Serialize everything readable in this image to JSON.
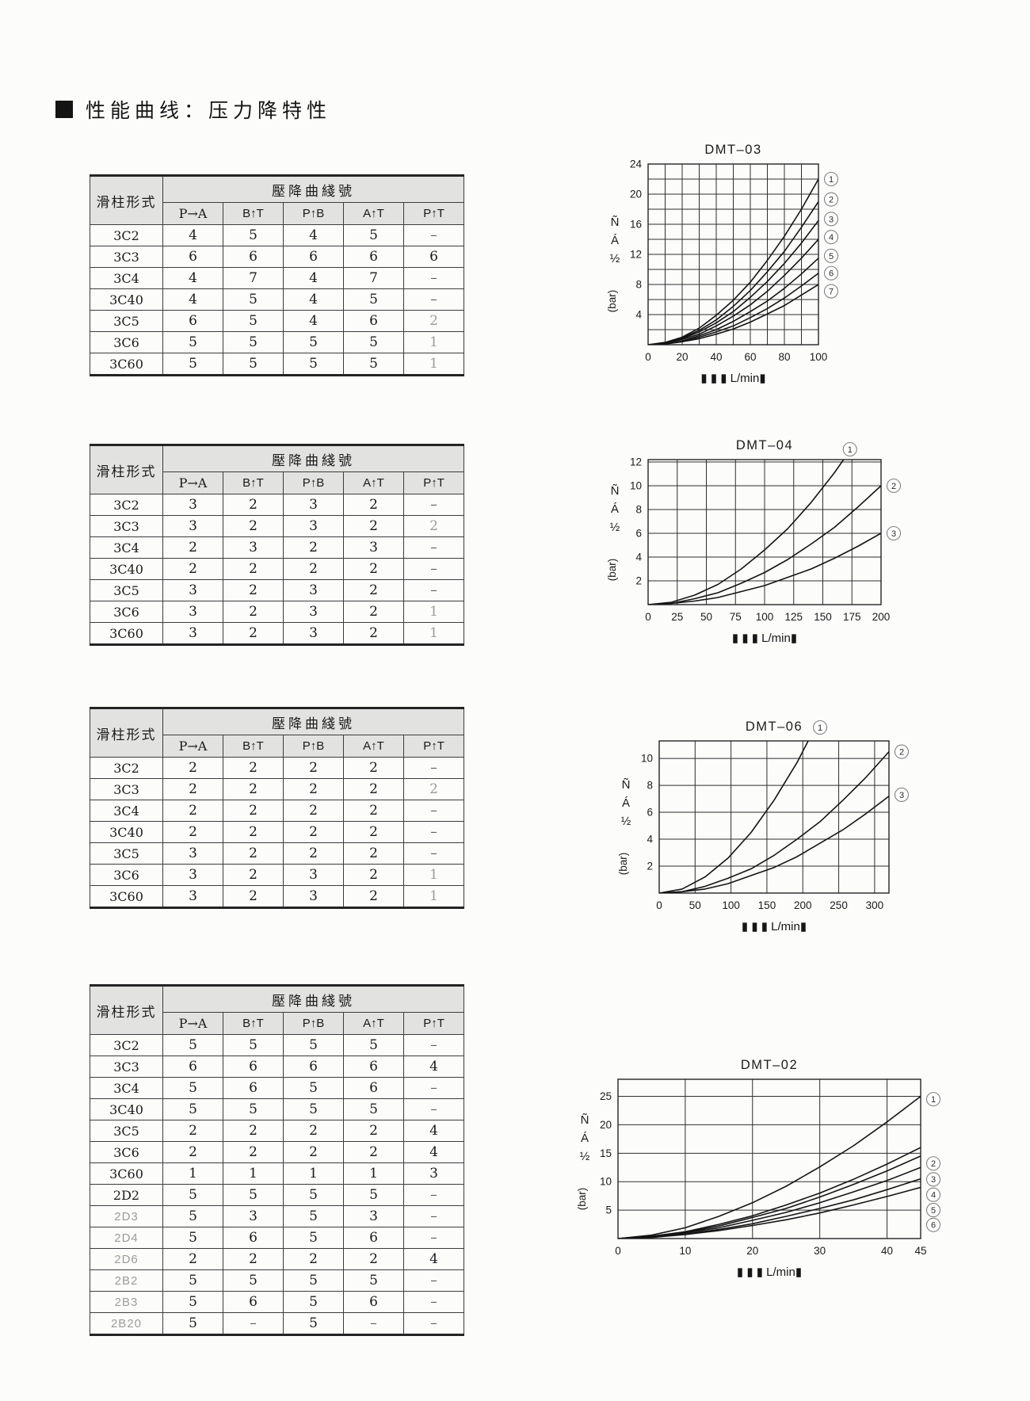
{
  "page": {
    "bullet": "■",
    "title": "性能曲线：压力降特性"
  },
  "table_header": {
    "spool_col": "滑柱形式",
    "group": "壓降曲綫號",
    "flow_paths": [
      "P→A",
      "B↑T",
      "P↑B",
      "A↑T",
      "P↑T"
    ]
  },
  "tables": [
    {
      "rows": [
        {
          "label": "3C2",
          "cells": [
            "4",
            "5",
            "4",
            "5",
            "–"
          ]
        },
        {
          "label": "3C3",
          "cells": [
            "6",
            "6",
            "6",
            "6",
            "6"
          ]
        },
        {
          "label": "3C4",
          "cells": [
            "4",
            "7",
            "4",
            "7",
            "–"
          ]
        },
        {
          "label": "3C40",
          "cells": [
            "4",
            "5",
            "4",
            "5",
            "–"
          ]
        },
        {
          "label": "3C5",
          "cells": [
            "6",
            "5",
            "4",
            "6",
            {
              "v": "2",
              "gray": true
            }
          ]
        },
        {
          "label": "3C6",
          "cells": [
            "5",
            "5",
            "5",
            "5",
            {
              "v": "1",
              "gray": true
            }
          ]
        },
        {
          "label": "3C60",
          "cells": [
            "5",
            "5",
            "5",
            "5",
            {
              "v": "1",
              "gray": true
            }
          ]
        }
      ]
    },
    {
      "rows": [
        {
          "label": "3C2",
          "cells": [
            "3",
            "2",
            "3",
            "2",
            "–"
          ]
        },
        {
          "label": "3C3",
          "cells": [
            "3",
            "2",
            "3",
            "2",
            {
              "v": "2",
              "gray": true
            }
          ]
        },
        {
          "label": "3C4",
          "cells": [
            "2",
            "3",
            "2",
            "3",
            "–"
          ]
        },
        {
          "label": "3C40",
          "cells": [
            "2",
            "2",
            "2",
            "2",
            "–"
          ]
        },
        {
          "label": "3C5",
          "cells": [
            "3",
            "2",
            "3",
            "2",
            "–"
          ]
        },
        {
          "label": "3C6",
          "cells": [
            "3",
            "2",
            "3",
            "2",
            {
              "v": "1",
              "gray": true
            }
          ]
        },
        {
          "label": "3C60",
          "cells": [
            "3",
            "2",
            "3",
            "2",
            {
              "v": "1",
              "gray": true
            }
          ]
        }
      ]
    },
    {
      "rows": [
        {
          "label": "3C2",
          "cells": [
            "2",
            "2",
            "2",
            "2",
            "–"
          ]
        },
        {
          "label": "3C3",
          "cells": [
            "2",
            "2",
            "2",
            "2",
            {
              "v": "2",
              "gray": true
            }
          ]
        },
        {
          "label": "3C4",
          "cells": [
            "2",
            "2",
            "2",
            "2",
            "–"
          ]
        },
        {
          "label": "3C40",
          "cells": [
            "2",
            "2",
            "2",
            "2",
            "–"
          ]
        },
        {
          "label": "3C5",
          "cells": [
            "3",
            "2",
            "2",
            "2",
            "–"
          ]
        },
        {
          "label": "3C6",
          "cells": [
            "3",
            "2",
            "3",
            "2",
            {
              "v": "1",
              "gray": true
            }
          ]
        },
        {
          "label": "3C60",
          "cells": [
            "3",
            "2",
            "3",
            "2",
            {
              "v": "1",
              "gray": true
            }
          ]
        }
      ]
    },
    {
      "rows": [
        {
          "label": "3C2",
          "cells": [
            "5",
            "5",
            "5",
            "5",
            "–"
          ]
        },
        {
          "label": "3C3",
          "cells": [
            "6",
            "6",
            "6",
            "6",
            "4"
          ]
        },
        {
          "label": "3C4",
          "cells": [
            "5",
            "6",
            "5",
            "6",
            "–"
          ]
        },
        {
          "label": "3C40",
          "cells": [
            "5",
            "5",
            "5",
            "5",
            "–"
          ]
        },
        {
          "label": "3C5",
          "cells": [
            "2",
            "2",
            "2",
            "2",
            "4"
          ]
        },
        {
          "label": "3C6",
          "cells": [
            "2",
            "2",
            "2",
            "2",
            "4"
          ]
        },
        {
          "label": "3C60",
          "cells": [
            "1",
            "1",
            "1",
            "1",
            "3"
          ]
        },
        {
          "label": "2D2",
          "cells": [
            "5",
            "5",
            "5",
            "5",
            "–"
          ]
        },
        {
          "label": "2D3",
          "gray_label": true,
          "cells": [
            "5",
            "3",
            "5",
            "3",
            "–"
          ]
        },
        {
          "label": "2D4",
          "gray_label": true,
          "cells": [
            "5",
            "6",
            "5",
            "6",
            "–"
          ]
        },
        {
          "label": "2D6",
          "gray_label": true,
          "cells": [
            "2",
            "2",
            "2",
            "2",
            "4"
          ]
        },
        {
          "label": "2B2",
          "gray_label": true,
          "cells": [
            "5",
            "5",
            "5",
            "5",
            "–"
          ]
        },
        {
          "label": "2B3",
          "gray_label": true,
          "cells": [
            "5",
            "6",
            "5",
            "6",
            "–"
          ]
        },
        {
          "label": "2B20",
          "gray_label": true,
          "cells": [
            "5",
            "–",
            "5",
            "–",
            "–"
          ]
        }
      ]
    }
  ],
  "chart_data": [
    {
      "type": "line",
      "title": "DMT–03",
      "xlabel": "▮ ▮ ▮ L/min▮",
      "ylabel_chars": [
        "Ñ",
        "Á",
        "½"
      ],
      "ylabel_unit": "(bar)",
      "xlim": [
        0,
        100
      ],
      "ylim": [
        0,
        24
      ],
      "xticks": [
        0,
        20,
        40,
        60,
        80,
        100
      ],
      "yticks": [
        4,
        8,
        12,
        16,
        20,
        24
      ],
      "grid_step_x": 10,
      "grid_step_y": 2,
      "x": [
        0,
        10,
        20,
        30,
        40,
        50,
        60,
        70,
        80,
        90,
        100
      ],
      "series": [
        {
          "name": "1",
          "values": [
            0,
            0.3,
            1.0,
            2.2,
            3.9,
            5.9,
            8.3,
            11.2,
            14.4,
            18.0,
            22.0
          ],
          "label_y": 22.0
        },
        {
          "name": "2",
          "values": [
            0,
            0.2,
            0.9,
            1.9,
            3.3,
            5.1,
            7.2,
            9.7,
            12.4,
            15.6,
            19.0
          ],
          "label_y": 19.3
        },
        {
          "name": "3",
          "values": [
            0,
            0.2,
            0.8,
            1.7,
            2.9,
            4.4,
            6.3,
            8.4,
            10.8,
            13.5,
            16.5
          ],
          "label_y": 16.7
        },
        {
          "name": "4",
          "values": [
            0,
            0.2,
            0.7,
            1.4,
            2.5,
            3.8,
            5.3,
            7.1,
            9.2,
            11.5,
            14.0
          ],
          "label_y": 14.3
        },
        {
          "name": "5",
          "values": [
            0,
            0.1,
            0.5,
            1.2,
            2.0,
            3.1,
            4.4,
            5.8,
            7.5,
            9.4,
            11.5
          ],
          "label_y": 11.8
        },
        {
          "name": "6",
          "values": [
            0,
            0.1,
            0.4,
            1.0,
            1.7,
            2.5,
            3.6,
            4.8,
            6.2,
            7.8,
            9.5
          ],
          "label_y": 9.5
        },
        {
          "name": "7",
          "values": [
            0,
            0.1,
            0.4,
            0.8,
            1.4,
            2.1,
            3.0,
            4.1,
            5.2,
            6.6,
            8.0
          ],
          "label_y": 7.1
        }
      ]
    },
    {
      "type": "line",
      "title": "DMT–04",
      "xlabel": "▮ ▮ ▮ L/min▮",
      "ylabel_chars": [
        "Ñ",
        "Á",
        "½"
      ],
      "ylabel_unit": "(bar)",
      "xlim": [
        0,
        200
      ],
      "ylim": [
        0,
        12.2
      ],
      "xticks": [
        0,
        25,
        50,
        75,
        100,
        125,
        150,
        175,
        200
      ],
      "yticks": [
        2,
        4,
        6,
        8,
        10,
        12
      ],
      "grid_step_x": 25,
      "grid_step_y": 2,
      "x": [
        0,
        20,
        40,
        60,
        80,
        100,
        120,
        140,
        160,
        180,
        200
      ],
      "series": [
        {
          "name": "1",
          "values": [
            0,
            0.2,
            0.8,
            1.7,
            3.0,
            4.6,
            6.4,
            8.6,
            11.1,
            13.9,
            17.0
          ],
          "label": "top"
        },
        {
          "name": "2",
          "values": [
            0,
            0.1,
            0.5,
            1.0,
            1.8,
            2.7,
            3.8,
            5.1,
            6.5,
            8.2,
            10.0
          ],
          "label_y": 10.0
        },
        {
          "name": "3",
          "values": [
            0,
            0.1,
            0.3,
            0.6,
            1.1,
            1.6,
            2.3,
            3.0,
            3.9,
            4.9,
            6.0
          ],
          "label_y": 6.0
        }
      ]
    },
    {
      "type": "line",
      "title": "DMT–06",
      "xlabel": "▮ ▮ ▮ L/min▮",
      "ylabel_chars": [
        "Ñ",
        "Á",
        "½"
      ],
      "ylabel_unit": "(bar)",
      "xlim": [
        0,
        320
      ],
      "ylim": [
        0,
        11.3
      ],
      "xticks": [
        0,
        50,
        100,
        150,
        200,
        250,
        300
      ],
      "yticks": [
        2,
        4,
        6,
        8,
        10
      ],
      "grid_step_x": 50,
      "grid_step_y": 2,
      "x": [
        0,
        32,
        64,
        96,
        128,
        160,
        192,
        224,
        256,
        288,
        320
      ],
      "series": [
        {
          "name": "1",
          "values": [
            0,
            0.3,
            1.2,
            2.6,
            4.5,
            6.9,
            9.7,
            13.0,
            16.8,
            21.0,
            25.6
          ],
          "label": "top"
        },
        {
          "name": "2",
          "values": [
            0,
            0.1,
            0.5,
            1.1,
            1.8,
            2.8,
            4.0,
            5.3,
            6.9,
            8.6,
            10.5
          ],
          "label_y": 10.5
        },
        {
          "name": "3",
          "values": [
            0,
            0.1,
            0.3,
            0.7,
            1.3,
            1.9,
            2.7,
            3.7,
            4.7,
            5.9,
            7.2
          ],
          "label_y": 7.3
        }
      ]
    },
    {
      "type": "line",
      "title": "DMT–02",
      "xlabel": "▮ ▮ ▮ L/min▮",
      "ylabel_chars": [
        "Ñ",
        "Á",
        "½"
      ],
      "ylabel_unit": "(bar)",
      "xlim": [
        0,
        45
      ],
      "ylim": [
        0,
        28
      ],
      "xticks": [
        0,
        10,
        20,
        30,
        40,
        45
      ],
      "yticks": [
        5,
        10,
        15,
        20,
        25
      ],
      "grid_step_x": 10,
      "grid_step_y": 5,
      "x": [
        0,
        5,
        10,
        15,
        20,
        25,
        30,
        35,
        40,
        45
      ],
      "series": [
        {
          "name": "1",
          "values": [
            0,
            0.6,
            1.9,
            3.9,
            6.3,
            9.2,
            12.6,
            16.3,
            20.5,
            25.0
          ],
          "label_y": 24.5
        },
        {
          "name": "2",
          "values": [
            0,
            0.4,
            1.2,
            2.5,
            4.0,
            5.9,
            8.0,
            10.4,
            13.1,
            16.0
          ],
          "label_y": 13.2
        },
        {
          "name": "3",
          "values": [
            0,
            0.3,
            1.1,
            2.2,
            3.7,
            5.3,
            7.3,
            9.5,
            11.9,
            14.5
          ],
          "label_y": 10.4
        },
        {
          "name": "4",
          "values": [
            0,
            0.3,
            1.0,
            1.9,
            3.2,
            4.6,
            6.3,
            8.2,
            10.2,
            12.5
          ],
          "label_y": 7.7
        },
        {
          "name": "5",
          "values": [
            0,
            0.2,
            0.8,
            1.6,
            2.6,
            3.9,
            5.3,
            6.8,
            8.6,
            10.5
          ],
          "label_y": 5.0
        },
        {
          "name": "6",
          "values": [
            0,
            0.2,
            0.7,
            1.4,
            2.3,
            3.3,
            4.5,
            5.9,
            7.4,
            9.0
          ],
          "label_y": 2.4
        }
      ]
    }
  ]
}
